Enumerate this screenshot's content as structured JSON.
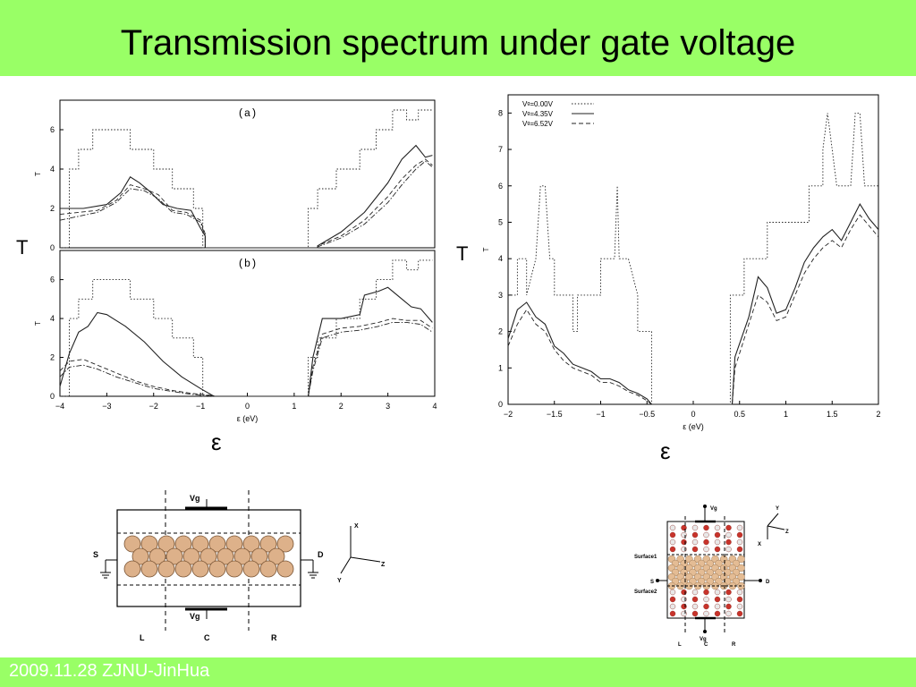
{
  "slide": {
    "title": "Transmission spectrum under gate voltage",
    "footer": "2009.11.28 ZJNU-JinHua",
    "bg_color": "#ffffff",
    "bar_color": "#99ff66"
  },
  "labels": {
    "left_T": "T",
    "right_T": "T",
    "left_eps": "ε",
    "right_eps": "ε"
  },
  "chart_data": [
    {
      "type": "line",
      "panel": "(a)",
      "ylabel": "T",
      "xlim": [
        -4,
        4
      ],
      "ylim": [
        0,
        7.5
      ],
      "yticks": [
        "0",
        "2",
        "4",
        "6"
      ],
      "series": [
        {
          "style": "dotted",
          "x": [
            -4,
            -3.8,
            -3.8,
            -3.6,
            -3.6,
            -3.3,
            -3.3,
            -2.5,
            -2.5,
            -2.0,
            -2.0,
            -1.6,
            -1.6,
            -1.15,
            -1.15,
            -0.95,
            -0.95,
            1.3,
            1.3,
            1.5,
            1.5,
            1.9,
            1.9,
            2.4,
            2.4,
            2.75,
            2.75,
            3.1,
            3.1,
            3.4,
            3.4,
            3.65,
            3.65,
            3.95
          ],
          "y": [
            0,
            0,
            4,
            4,
            5,
            5,
            6,
            6,
            5,
            5,
            4,
            4,
            3,
            3,
            2,
            2,
            0,
            0,
            2,
            2,
            3,
            3,
            4,
            4,
            5,
            5,
            6,
            6,
            7,
            7,
            6.5,
            6.5,
            7,
            7
          ]
        },
        {
          "style": "solid",
          "x": [
            -4,
            -3.5,
            -3.0,
            -2.7,
            -2.5,
            -2.3,
            -2.1,
            -1.8,
            -1.5,
            -1.2,
            -1.0,
            -0.9,
            -0.9,
            1.5,
            1.5,
            2.0,
            2.5,
            3.0,
            3.3,
            3.6,
            3.8,
            3.95
          ],
          "y": [
            2,
            2,
            2.2,
            2.8,
            3.6,
            3.3,
            2.9,
            2.2,
            2.0,
            1.9,
            1.0,
            0.6,
            0,
            0,
            0.1,
            0.8,
            1.8,
            3.3,
            4.5,
            5.2,
            4.6,
            4.7
          ]
        },
        {
          "style": "dashed",
          "x": [
            -4,
            -3.6,
            -3.2,
            -2.8,
            -2.5,
            -2.2,
            -1.9,
            -1.6,
            -1.3,
            -1.0,
            -0.9,
            -0.9,
            1.5,
            1.5,
            2.0,
            2.5,
            3.0,
            3.3,
            3.6,
            3.8,
            3.95
          ],
          "y": [
            1.7,
            1.8,
            1.9,
            2.4,
            3.2,
            3.0,
            2.7,
            1.9,
            1.8,
            1.4,
            0.7,
            0,
            0,
            0.1,
            0.6,
            1.4,
            2.6,
            3.5,
            4.2,
            4.5,
            4.2
          ]
        },
        {
          "style": "dashdot",
          "x": [
            -4,
            -3.6,
            -3.2,
            -2.8,
            -2.5,
            -2.2,
            -1.9,
            -1.6,
            -1.3,
            -1.0,
            -0.9,
            -0.9,
            1.5,
            1.5,
            2.0,
            2.5,
            3.0,
            3.3,
            3.6,
            3.8,
            3.95
          ],
          "y": [
            1.4,
            1.6,
            1.8,
            2.3,
            3.0,
            2.9,
            2.5,
            1.8,
            1.7,
            1.3,
            0.6,
            0,
            0,
            0.05,
            0.5,
            1.2,
            2.3,
            3.2,
            4.0,
            4.4,
            4.1
          ]
        }
      ]
    },
    {
      "type": "line",
      "panel": "(b)",
      "ylabel": "T",
      "xlabel": "ε  (eV)",
      "xlim": [
        -4,
        4
      ],
      "ylim": [
        0,
        7.5
      ],
      "yticks": [
        "0",
        "2",
        "4",
        "6"
      ],
      "xticks": [
        "−4",
        "−3",
        "−2",
        "−1",
        "0",
        "1",
        "2",
        "3",
        "4"
      ],
      "series": [
        {
          "style": "dotted",
          "x": [
            -4,
            -3.8,
            -3.8,
            -3.6,
            -3.6,
            -3.3,
            -3.3,
            -2.5,
            -2.5,
            -2.0,
            -2.0,
            -1.6,
            -1.6,
            -1.15,
            -1.15,
            -0.95,
            -0.95,
            1.3,
            1.3,
            1.5,
            1.5,
            1.9,
            1.9,
            2.4,
            2.4,
            2.75,
            2.75,
            3.1,
            3.1,
            3.4,
            3.4,
            3.65,
            3.65,
            3.95
          ],
          "y": [
            0,
            0,
            4,
            4,
            5,
            5,
            6,
            6,
            5,
            5,
            4,
            4,
            3,
            3,
            2,
            2,
            0,
            0,
            2,
            2,
            3,
            3,
            4,
            4,
            5,
            5,
            6,
            6,
            7,
            7,
            6.5,
            6.5,
            7,
            7
          ]
        },
        {
          "style": "solid",
          "x": [
            -4,
            -3.8,
            -3.6,
            -3.4,
            -3.2,
            -3.0,
            -2.6,
            -2.2,
            -1.8,
            -1.4,
            -1.0,
            -0.75,
            -0.7,
            1.3,
            1.4,
            1.6,
            2.0,
            2.4,
            2.5,
            2.8,
            3.0,
            3.3,
            3.5,
            3.7,
            3.95
          ],
          "y": [
            0.5,
            2.2,
            3.3,
            3.6,
            4.3,
            4.2,
            3.6,
            2.8,
            1.8,
            1.0,
            0.4,
            0.05,
            0,
            0,
            2.0,
            4.0,
            4.0,
            4.2,
            5.2,
            5.4,
            5.6,
            5.0,
            4.6,
            4.5,
            3.8
          ]
        },
        {
          "style": "dashed",
          "x": [
            -4,
            -3.8,
            -3.5,
            -3.2,
            -2.8,
            -2.4,
            -2.0,
            -1.6,
            -1.2,
            -0.8,
            -0.7,
            1.3,
            1.4,
            1.6,
            2.0,
            2.4,
            2.8,
            3.1,
            3.4,
            3.7,
            3.95
          ],
          "y": [
            1.3,
            1.8,
            1.9,
            1.6,
            1.2,
            0.8,
            0.5,
            0.3,
            0.15,
            0.05,
            0,
            0,
            1.5,
            3.2,
            3.5,
            3.6,
            3.8,
            4.0,
            3.9,
            3.9,
            3.5
          ]
        },
        {
          "style": "dashdot",
          "x": [
            -4,
            -3.8,
            -3.5,
            -3.2,
            -2.8,
            -2.4,
            -2.0,
            -1.6,
            -1.2,
            -0.8,
            -0.7,
            1.3,
            1.4,
            1.6,
            2.0,
            2.4,
            2.8,
            3.1,
            3.4,
            3.7,
            3.95
          ],
          "y": [
            1.0,
            1.5,
            1.6,
            1.4,
            1.0,
            0.7,
            0.4,
            0.25,
            0.1,
            0.03,
            0,
            0,
            1.3,
            3.0,
            3.3,
            3.4,
            3.6,
            3.8,
            3.8,
            3.7,
            3.3
          ]
        }
      ]
    },
    {
      "type": "line",
      "ylabel": "T",
      "xlabel": "ε  (eV)",
      "xlim": [
        -2,
        2
      ],
      "ylim": [
        0,
        8.5
      ],
      "yticks": [
        "0",
        "1",
        "2",
        "3",
        "4",
        "5",
        "6",
        "7",
        "8"
      ],
      "xticks": [
        "−2",
        "−1.5",
        "−1",
        "−0.5",
        "0",
        "0.5",
        "1",
        "1.5",
        "2"
      ],
      "legend": "top-left",
      "series": [
        {
          "name": "Vᵍ=0.00V",
          "style": "dotted",
          "x": [
            -2,
            -1.95,
            -1.9,
            -1.9,
            -1.8,
            -1.8,
            -1.7,
            -1.65,
            -1.6,
            -1.55,
            -1.5,
            -1.5,
            -1.3,
            -1.3,
            -1.25,
            -1.25,
            -1.0,
            -1.0,
            -0.9,
            -0.85,
            -0.82,
            -0.8,
            -0.7,
            -0.6,
            -0.6,
            -0.45,
            -0.45,
            0.4,
            0.4,
            0.55,
            0.55,
            0.8,
            0.8,
            1.25,
            1.25,
            1.4,
            1.4,
            1.45,
            1.5,
            1.55,
            1.7,
            1.75,
            1.8,
            1.85,
            1.9,
            2.0
          ],
          "y": [
            3,
            3,
            3,
            4,
            4,
            3,
            4,
            6,
            6,
            4,
            4,
            3,
            3,
            2,
            2,
            3,
            3,
            4,
            4,
            4,
            6,
            4,
            4,
            3,
            2,
            2,
            0,
            0,
            3,
            3,
            4,
            4,
            5,
            5,
            6,
            6,
            7,
            8,
            7,
            6,
            6,
            8,
            8,
            6,
            6,
            6
          ]
        },
        {
          "name": "Vᵍ=4.35V",
          "style": "solid",
          "x": [
            -2,
            -1.9,
            -1.8,
            -1.7,
            -1.6,
            -1.5,
            -1.4,
            -1.3,
            -1.2,
            -1.1,
            -1.0,
            -0.9,
            -0.8,
            -0.7,
            -0.6,
            -0.5,
            -0.45,
            0.42,
            0.45,
            0.6,
            0.7,
            0.8,
            0.9,
            1.0,
            1.1,
            1.2,
            1.3,
            1.4,
            1.5,
            1.6,
            1.7,
            1.8,
            1.9,
            2.0
          ],
          "y": [
            1.8,
            2.6,
            2.8,
            2.4,
            2.2,
            1.6,
            1.4,
            1.1,
            1.0,
            0.9,
            0.7,
            0.7,
            0.6,
            0.4,
            0.3,
            0.15,
            0,
            0,
            1.3,
            2.4,
            3.5,
            3.2,
            2.5,
            2.6,
            3.2,
            3.9,
            4.3,
            4.6,
            4.8,
            4.5,
            5.0,
            5.5,
            5.1,
            4.8
          ]
        },
        {
          "name": "Vᵍ=6.52V",
          "style": "dashed",
          "x": [
            -2,
            -1.9,
            -1.8,
            -1.7,
            -1.6,
            -1.5,
            -1.4,
            -1.3,
            -1.2,
            -1.1,
            -1.0,
            -0.9,
            -0.8,
            -0.7,
            -0.6,
            -0.5,
            -0.45,
            0.42,
            0.45,
            0.6,
            0.7,
            0.8,
            0.9,
            1.0,
            1.1,
            1.2,
            1.3,
            1.4,
            1.5,
            1.6,
            1.7,
            1.8,
            1.9,
            2.0
          ],
          "y": [
            1.6,
            2.2,
            2.6,
            2.2,
            2.0,
            1.5,
            1.2,
            1.0,
            0.9,
            0.8,
            0.6,
            0.6,
            0.5,
            0.35,
            0.25,
            0.1,
            0,
            0,
            1.0,
            2.2,
            3.0,
            2.8,
            2.3,
            2.4,
            3.0,
            3.6,
            4.0,
            4.3,
            4.5,
            4.3,
            4.8,
            5.2,
            4.9,
            4.6
          ]
        }
      ]
    }
  ],
  "device_left": {
    "vg_top": "Vg",
    "vg_bottom": "Vg",
    "source": "S",
    "drain": "D",
    "region_L": "L",
    "region_C": "C",
    "region_R": "R",
    "axis_x": "X",
    "axis_y": "Y",
    "axis_z": "Z"
  },
  "device_right": {
    "vg_top": "Vg",
    "vg_bottom": "Vg",
    "surface1": "Surface1",
    "surface2": "Surface2",
    "source": "S",
    "drain": "D",
    "region_L": "L",
    "region_C": "C",
    "region_R": "R",
    "axis_x": "X",
    "axis_y": "Y",
    "axis_z": "Z"
  }
}
